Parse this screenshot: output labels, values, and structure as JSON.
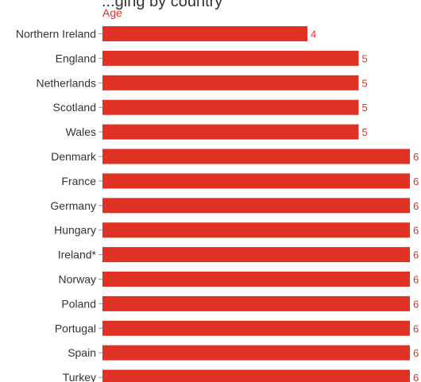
{
  "chart_data": {
    "type": "bar",
    "orientation": "horizontal",
    "title": "...ging by country",
    "value_label": "Age",
    "categories": [
      "Northern Ireland",
      "England",
      "Netherlands",
      "Scotland",
      "Wales",
      "Denmark",
      "France",
      "Germany",
      "Hungary",
      "Ireland*",
      "Norway",
      "Poland",
      "Portugal",
      "Spain",
      "Turkey"
    ],
    "values": [
      4,
      5,
      5,
      5,
      5,
      6,
      6,
      6,
      6,
      6,
      6,
      6,
      6,
      6,
      6
    ],
    "xlim": [
      0,
      6
    ],
    "grid": false,
    "legend": "none",
    "colors": {
      "bar": "#e03224",
      "value_label": "#e03224",
      "unit_label": "#e03224",
      "category_label": "#333333",
      "tick": "#9a9a9a"
    }
  }
}
